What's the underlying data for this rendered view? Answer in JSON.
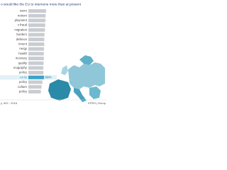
{
  "chart_data": {
    "type": "bar",
    "orientation": "horizontal",
    "title": "o would like the EU to intervene more than at present",
    "categories": [
      "ssors",
      "rrorism",
      "ployment",
      "x fraud",
      "migration",
      "borders",
      "defence",
      "nment",
      "nergy",
      "health",
      "mocracy",
      "quality",
      "mography",
      "policy",
      "curity",
      "policy",
      "culture",
      "policy"
    ],
    "values": [
      78,
      76,
      75,
      74,
      73,
      71,
      70,
      70,
      69,
      68,
      68,
      67,
      66,
      66,
      69,
      62,
      58,
      55
    ],
    "value_labels": {
      "14": "69%"
    },
    "highlight": 14,
    "color": "#c9ccd0",
    "highlight_color": "#3da3c8",
    "xlim": [
      0,
      100
    ],
    "source": "y, 902 - 2016",
    "credit": "EPRS | Europ"
  }
}
